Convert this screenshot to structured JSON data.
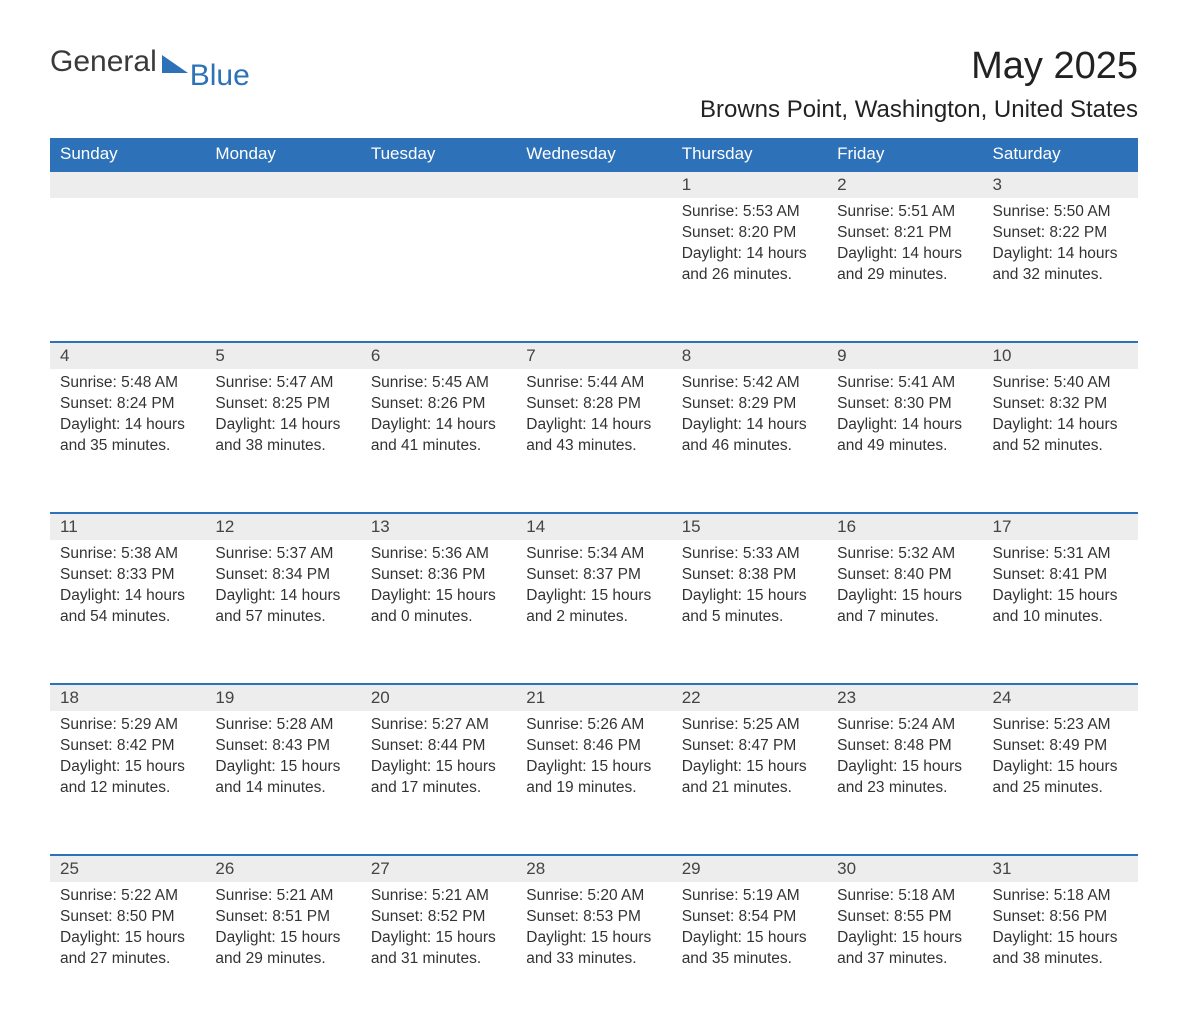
{
  "logo": {
    "main": "General",
    "accent": "Blue"
  },
  "title": "May 2025",
  "subtitle": "Browns Point, Washington, United States",
  "colors": {
    "header_bg": "#2d72b8",
    "header_text": "#ffffff",
    "daynum_bg": "#ededed",
    "row_border": "#2d72b8",
    "text": "#333333",
    "background": "#ffffff"
  },
  "typography": {
    "title_fontsize": 38,
    "subtitle_fontsize": 24,
    "dayheader_fontsize": 17,
    "daynum_fontsize": 17,
    "body_fontsize": 15.5,
    "font_family": "Arial"
  },
  "day_headers": [
    "Sunday",
    "Monday",
    "Tuesday",
    "Wednesday",
    "Thursday",
    "Friday",
    "Saturday"
  ],
  "weeks": [
    [
      null,
      null,
      null,
      null,
      {
        "n": "1",
        "sr": "Sunrise: 5:53 AM",
        "ss": "Sunset: 8:20 PM",
        "dl": "Daylight: 14 hours and 26 minutes."
      },
      {
        "n": "2",
        "sr": "Sunrise: 5:51 AM",
        "ss": "Sunset: 8:21 PM",
        "dl": "Daylight: 14 hours and 29 minutes."
      },
      {
        "n": "3",
        "sr": "Sunrise: 5:50 AM",
        "ss": "Sunset: 8:22 PM",
        "dl": "Daylight: 14 hours and 32 minutes."
      }
    ],
    [
      {
        "n": "4",
        "sr": "Sunrise: 5:48 AM",
        "ss": "Sunset: 8:24 PM",
        "dl": "Daylight: 14 hours and 35 minutes."
      },
      {
        "n": "5",
        "sr": "Sunrise: 5:47 AM",
        "ss": "Sunset: 8:25 PM",
        "dl": "Daylight: 14 hours and 38 minutes."
      },
      {
        "n": "6",
        "sr": "Sunrise: 5:45 AM",
        "ss": "Sunset: 8:26 PM",
        "dl": "Daylight: 14 hours and 41 minutes."
      },
      {
        "n": "7",
        "sr": "Sunrise: 5:44 AM",
        "ss": "Sunset: 8:28 PM",
        "dl": "Daylight: 14 hours and 43 minutes."
      },
      {
        "n": "8",
        "sr": "Sunrise: 5:42 AM",
        "ss": "Sunset: 8:29 PM",
        "dl": "Daylight: 14 hours and 46 minutes."
      },
      {
        "n": "9",
        "sr": "Sunrise: 5:41 AM",
        "ss": "Sunset: 8:30 PM",
        "dl": "Daylight: 14 hours and 49 minutes."
      },
      {
        "n": "10",
        "sr": "Sunrise: 5:40 AM",
        "ss": "Sunset: 8:32 PM",
        "dl": "Daylight: 14 hours and 52 minutes."
      }
    ],
    [
      {
        "n": "11",
        "sr": "Sunrise: 5:38 AM",
        "ss": "Sunset: 8:33 PM",
        "dl": "Daylight: 14 hours and 54 minutes."
      },
      {
        "n": "12",
        "sr": "Sunrise: 5:37 AM",
        "ss": "Sunset: 8:34 PM",
        "dl": "Daylight: 14 hours and 57 minutes."
      },
      {
        "n": "13",
        "sr": "Sunrise: 5:36 AM",
        "ss": "Sunset: 8:36 PM",
        "dl": "Daylight: 15 hours and 0 minutes."
      },
      {
        "n": "14",
        "sr": "Sunrise: 5:34 AM",
        "ss": "Sunset: 8:37 PM",
        "dl": "Daylight: 15 hours and 2 minutes."
      },
      {
        "n": "15",
        "sr": "Sunrise: 5:33 AM",
        "ss": "Sunset: 8:38 PM",
        "dl": "Daylight: 15 hours and 5 minutes."
      },
      {
        "n": "16",
        "sr": "Sunrise: 5:32 AM",
        "ss": "Sunset: 8:40 PM",
        "dl": "Daylight: 15 hours and 7 minutes."
      },
      {
        "n": "17",
        "sr": "Sunrise: 5:31 AM",
        "ss": "Sunset: 8:41 PM",
        "dl": "Daylight: 15 hours and 10 minutes."
      }
    ],
    [
      {
        "n": "18",
        "sr": "Sunrise: 5:29 AM",
        "ss": "Sunset: 8:42 PM",
        "dl": "Daylight: 15 hours and 12 minutes."
      },
      {
        "n": "19",
        "sr": "Sunrise: 5:28 AM",
        "ss": "Sunset: 8:43 PM",
        "dl": "Daylight: 15 hours and 14 minutes."
      },
      {
        "n": "20",
        "sr": "Sunrise: 5:27 AM",
        "ss": "Sunset: 8:44 PM",
        "dl": "Daylight: 15 hours and 17 minutes."
      },
      {
        "n": "21",
        "sr": "Sunrise: 5:26 AM",
        "ss": "Sunset: 8:46 PM",
        "dl": "Daylight: 15 hours and 19 minutes."
      },
      {
        "n": "22",
        "sr": "Sunrise: 5:25 AM",
        "ss": "Sunset: 8:47 PM",
        "dl": "Daylight: 15 hours and 21 minutes."
      },
      {
        "n": "23",
        "sr": "Sunrise: 5:24 AM",
        "ss": "Sunset: 8:48 PM",
        "dl": "Daylight: 15 hours and 23 minutes."
      },
      {
        "n": "24",
        "sr": "Sunrise: 5:23 AM",
        "ss": "Sunset: 8:49 PM",
        "dl": "Daylight: 15 hours and 25 minutes."
      }
    ],
    [
      {
        "n": "25",
        "sr": "Sunrise: 5:22 AM",
        "ss": "Sunset: 8:50 PM",
        "dl": "Daylight: 15 hours and 27 minutes."
      },
      {
        "n": "26",
        "sr": "Sunrise: 5:21 AM",
        "ss": "Sunset: 8:51 PM",
        "dl": "Daylight: 15 hours and 29 minutes."
      },
      {
        "n": "27",
        "sr": "Sunrise: 5:21 AM",
        "ss": "Sunset: 8:52 PM",
        "dl": "Daylight: 15 hours and 31 minutes."
      },
      {
        "n": "28",
        "sr": "Sunrise: 5:20 AM",
        "ss": "Sunset: 8:53 PM",
        "dl": "Daylight: 15 hours and 33 minutes."
      },
      {
        "n": "29",
        "sr": "Sunrise: 5:19 AM",
        "ss": "Sunset: 8:54 PM",
        "dl": "Daylight: 15 hours and 35 minutes."
      },
      {
        "n": "30",
        "sr": "Sunrise: 5:18 AM",
        "ss": "Sunset: 8:55 PM",
        "dl": "Daylight: 15 hours and 37 minutes."
      },
      {
        "n": "31",
        "sr": "Sunrise: 5:18 AM",
        "ss": "Sunset: 8:56 PM",
        "dl": "Daylight: 15 hours and 38 minutes."
      }
    ]
  ]
}
